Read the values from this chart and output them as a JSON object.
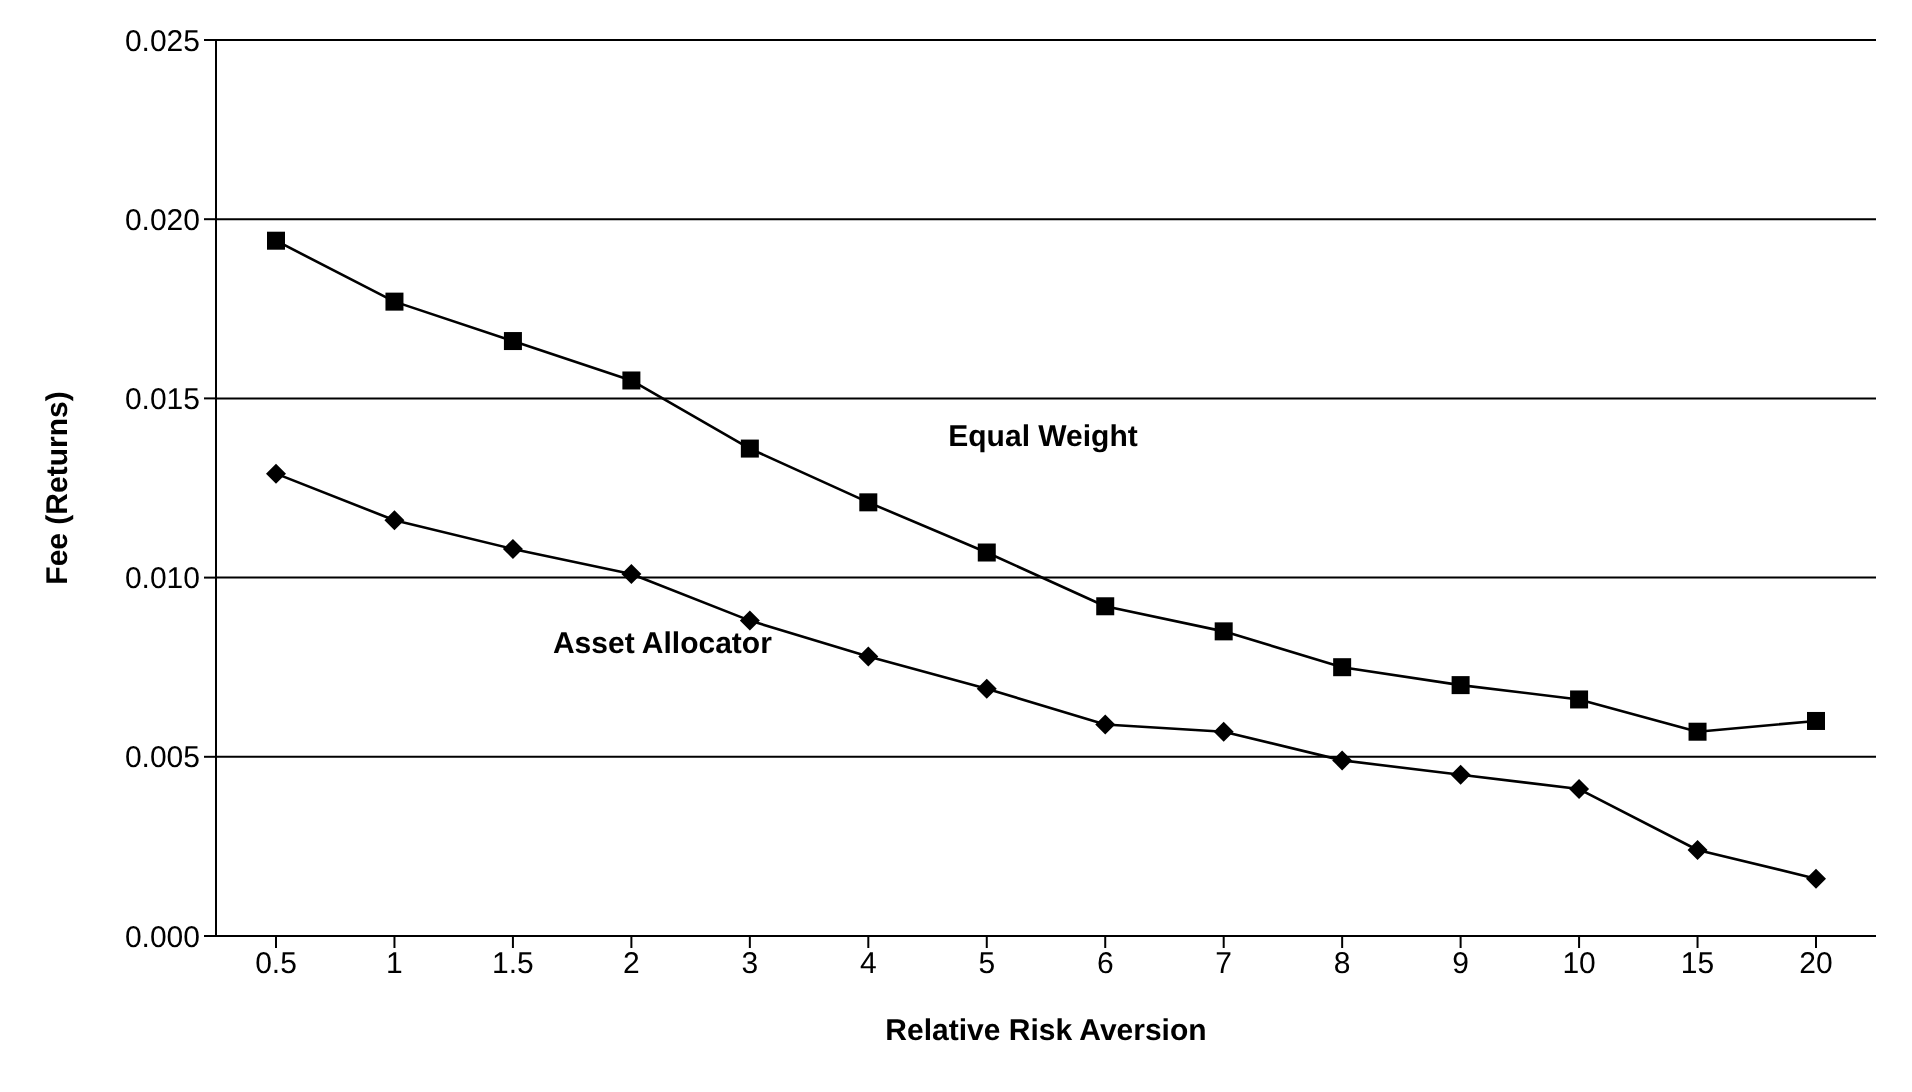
{
  "chart_data": {
    "type": "line",
    "xlabel": "Relative Risk Aversion",
    "ylabel": "Fee (Returns)",
    "categories": [
      "0.5",
      "1",
      "1.5",
      "2",
      "3",
      "4",
      "5",
      "6",
      "7",
      "8",
      "9",
      "10",
      "15",
      "20"
    ],
    "series": [
      {
        "name": "Equal Weight",
        "color": "#000000",
        "marker": "square",
        "values": [
          0.0194,
          0.0177,
          0.0166,
          0.0155,
          0.0136,
          0.0121,
          0.0107,
          0.0092,
          0.0085,
          0.0075,
          0.007,
          0.0066,
          0.0057,
          0.006
        ]
      },
      {
        "name": "Asset Allocator",
        "color": "#000000",
        "marker": "diamond",
        "values": [
          0.0129,
          0.0116,
          0.0108,
          0.0101,
          0.0088,
          0.0078,
          0.0069,
          0.0059,
          0.0057,
          0.0049,
          0.0045,
          0.0041,
          0.0024,
          0.0016
        ]
      }
    ],
    "ylim": [
      0,
      0.025
    ],
    "yticks": [
      {
        "value": 0,
        "label": "0.000"
      },
      {
        "value": 0.005,
        "label": "0.005"
      },
      {
        "value": 0.01,
        "label": "0.010"
      },
      {
        "value": 0.015,
        "label": "0.015"
      },
      {
        "value": 0.02,
        "label": "0.020"
      },
      {
        "value": 0.025,
        "label": "0.025"
      }
    ],
    "grid": "y",
    "legend": false,
    "line_style": "solid"
  }
}
